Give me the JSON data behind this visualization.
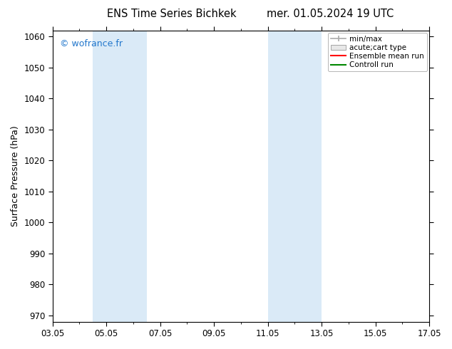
{
  "title_left": "ENS Time Series Bichkek",
  "title_right": "mer. 01.05.2024 19 UTC",
  "ylabel": "Surface Pressure (hPa)",
  "ylim": [
    968,
    1062
  ],
  "yticks": [
    970,
    980,
    990,
    1000,
    1010,
    1020,
    1030,
    1040,
    1050,
    1060
  ],
  "xtick_labels": [
    "03.05",
    "05.05",
    "07.05",
    "09.05",
    "11.05",
    "13.05",
    "15.05",
    "17.05"
  ],
  "xtick_positions": [
    0,
    2,
    4,
    6,
    8,
    10,
    12,
    14
  ],
  "xlim": [
    0,
    14
  ],
  "shaded_bands": [
    {
      "x_start": 1.5,
      "x_end": 2.5,
      "color": "#daeaf7"
    },
    {
      "x_start": 2.5,
      "x_end": 3.5,
      "color": "#daeaf7"
    },
    {
      "x_start": 8.0,
      "x_end": 9.0,
      "color": "#daeaf7"
    },
    {
      "x_start": 9.0,
      "x_end": 10.0,
      "color": "#daeaf7"
    }
  ],
  "watermark": "© wofrance.fr",
  "watermark_color": "#2277cc",
  "legend_entries": [
    {
      "label": "min/max",
      "color": "#aaaaaa",
      "style": "minmax"
    },
    {
      "label": "acute;cart type",
      "color": "#cccccc",
      "style": "box"
    },
    {
      "label": "Ensemble mean run",
      "color": "#ff0000",
      "style": "line"
    },
    {
      "label": "Controll run",
      "color": "#008800",
      "style": "line"
    }
  ],
  "background_color": "#ffffff",
  "plot_bg_color": "#ffffff",
  "title_fontsize": 10.5,
  "label_fontsize": 9,
  "tick_fontsize": 8.5,
  "watermark_fontsize": 9,
  "legend_fontsize": 7.5
}
